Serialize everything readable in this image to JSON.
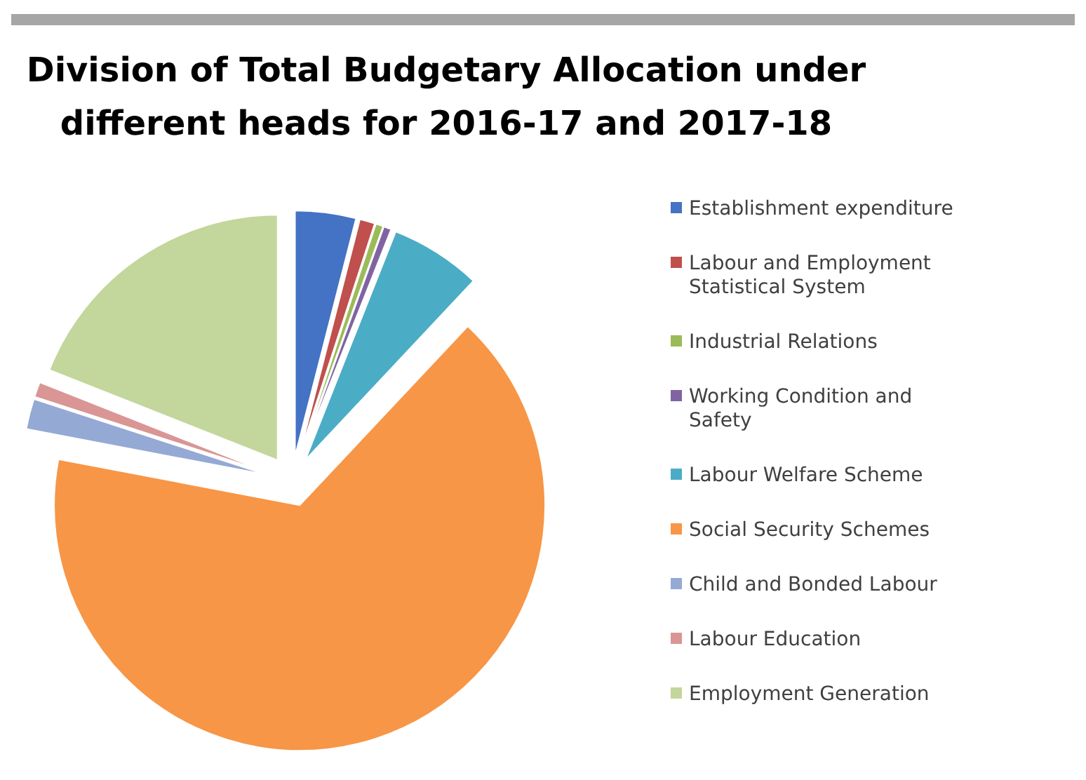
{
  "chart_data": {
    "type": "pie",
    "title": "Division of Total Budgetary Allocation under different heads for 2016-17 and 2017-18",
    "categories": [
      "Establishment expenditure",
      "Labour and Employment Statistical System",
      "Industrial Relations",
      "Working Condition and Safety",
      "Labour Welfare Scheme",
      "Social Security Schemes",
      "Child and Bonded Labour",
      "Labour Education",
      "Employment Generation"
    ],
    "values": [
      4,
      1,
      0.5,
      0.5,
      6,
      66,
      2,
      1,
      19
    ],
    "colors": [
      "#4472c4",
      "#c0504d",
      "#9bbb59",
      "#8064a2",
      "#4bacc6",
      "#f79646",
      "#95a9d5",
      "#d99694",
      "#c3d69b"
    ],
    "legend": "right"
  }
}
